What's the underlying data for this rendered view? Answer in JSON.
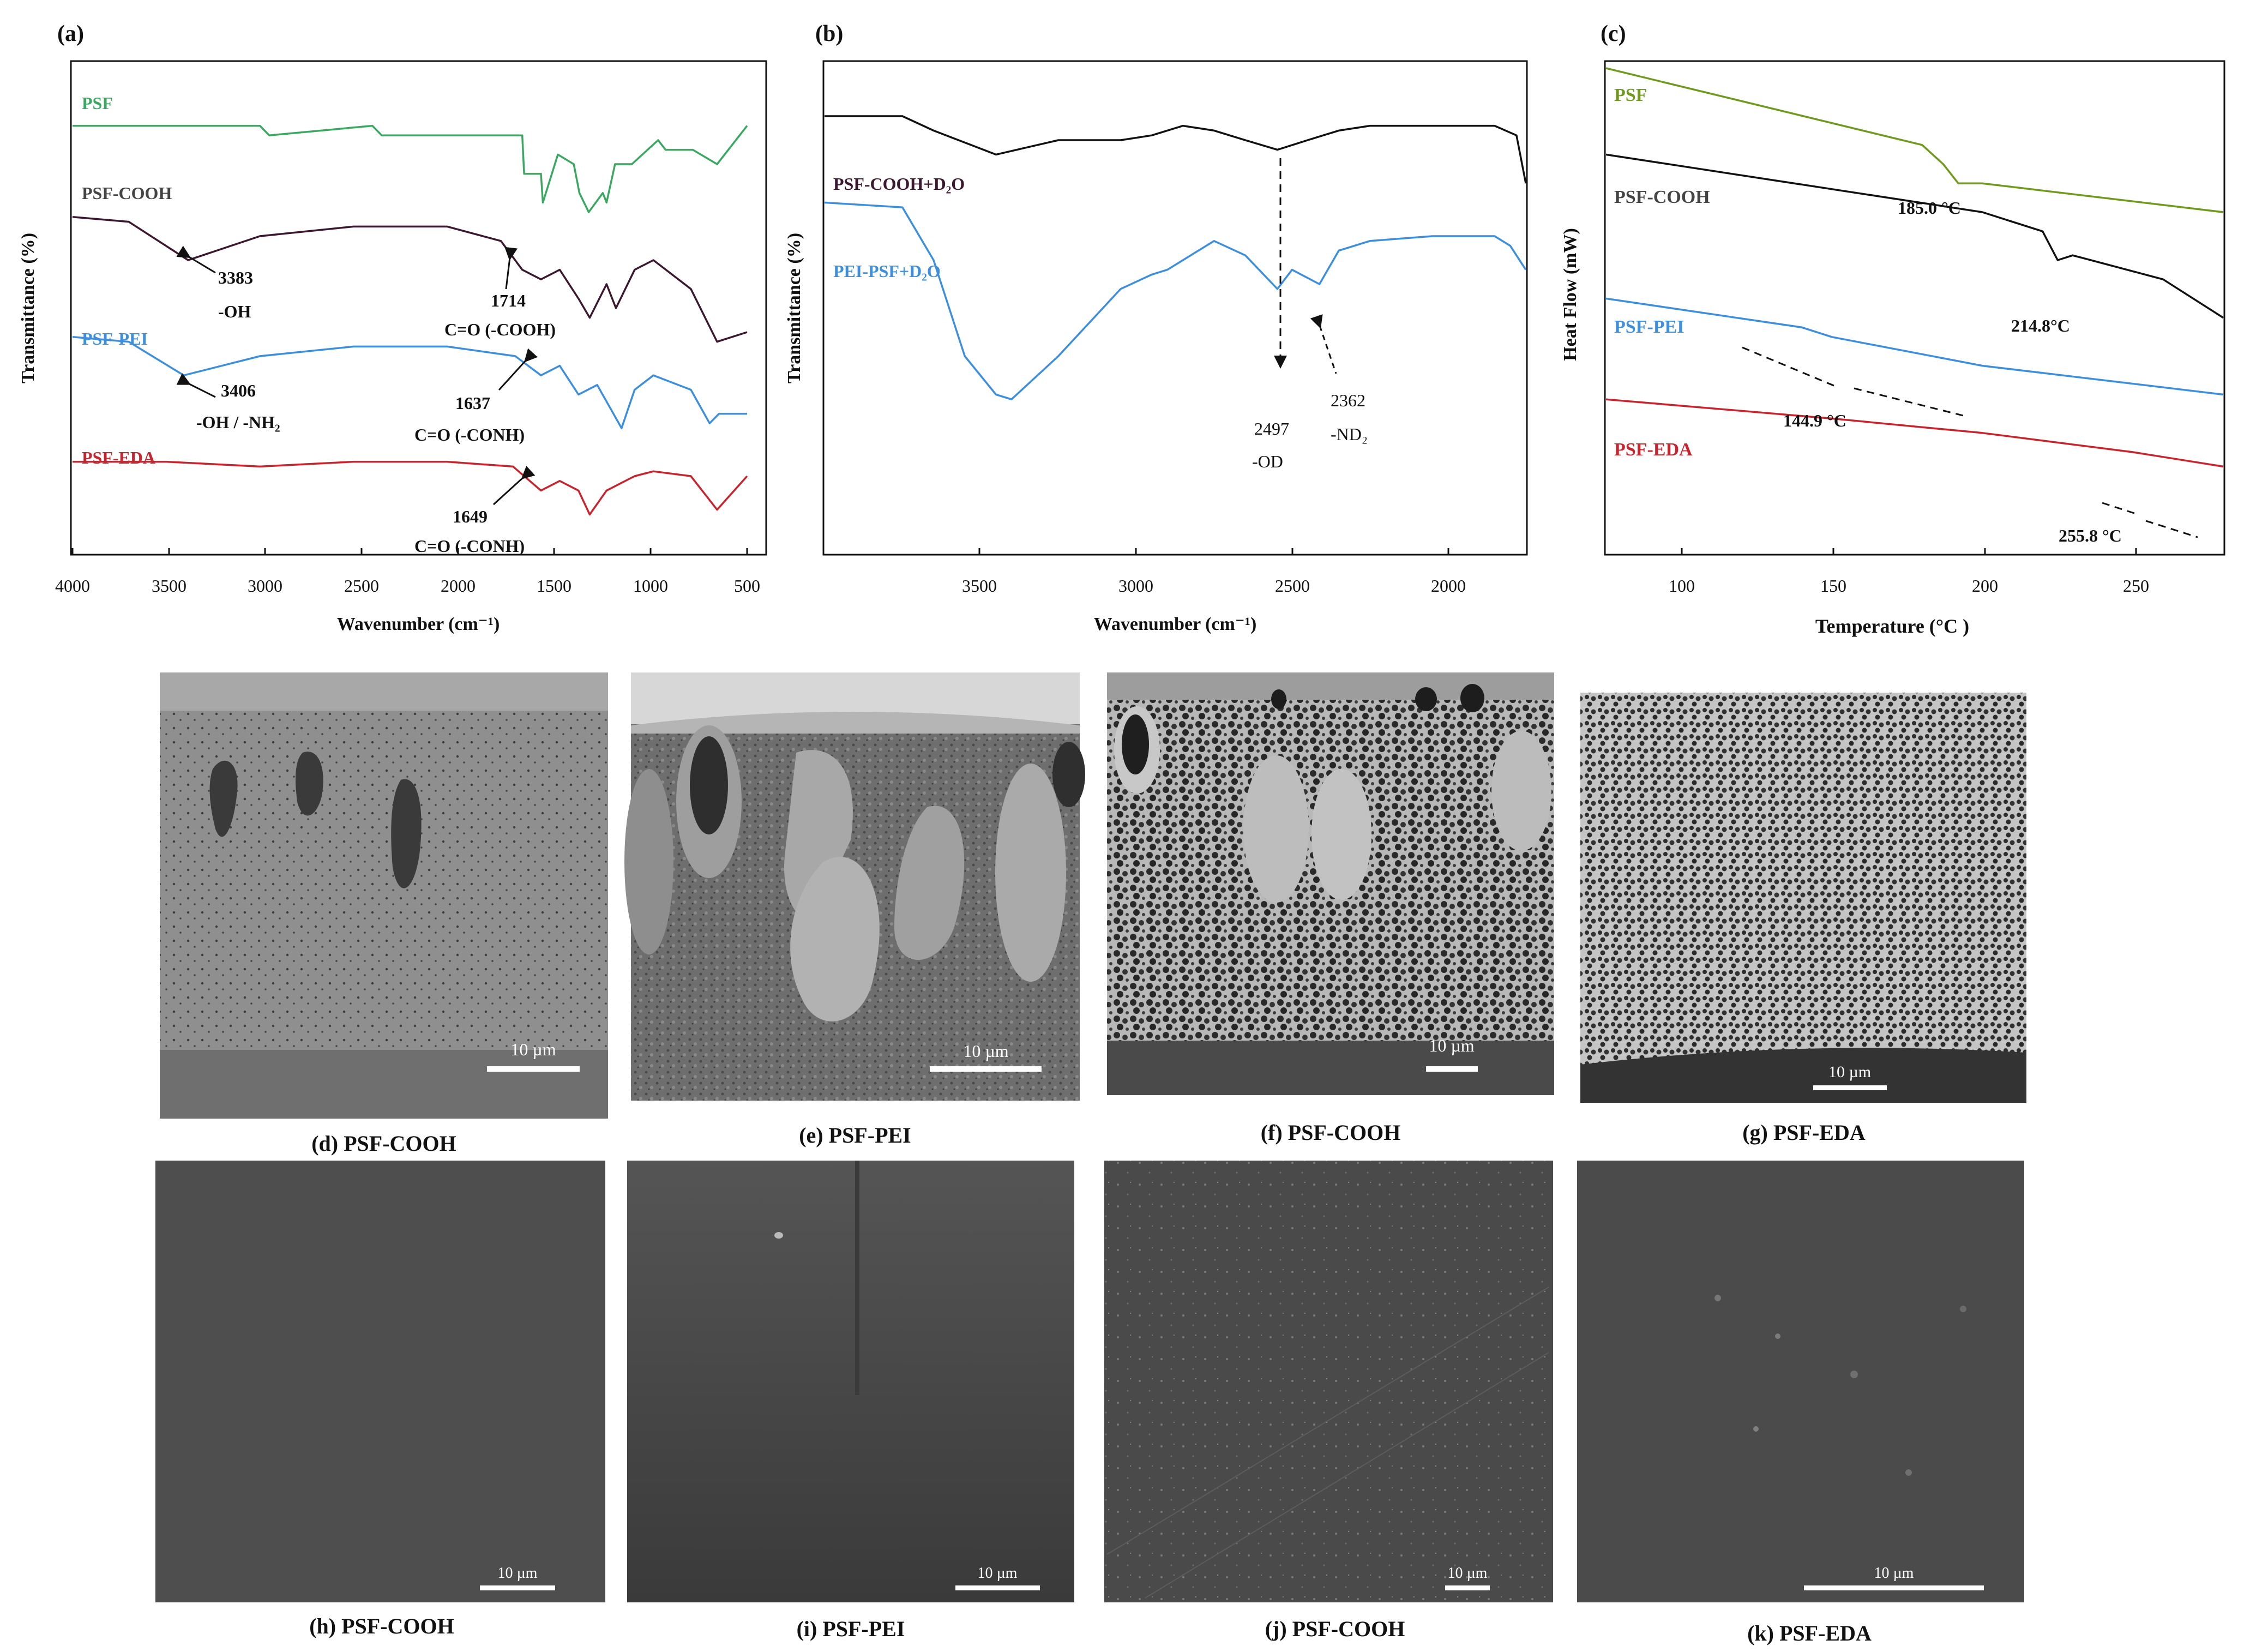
{
  "colors": {
    "green": "#3aa860",
    "purple": "#3c1730",
    "blue": "#3d8fdd",
    "red": "#c8242d",
    "black": "#111111",
    "dsc_green": "#6f9a1e"
  },
  "panels": {
    "a": {
      "label": "(a)",
      "xlabel": "Wavenumber (cm⁻¹)",
      "ylabel": "Transmittance (%)",
      "ticks": [
        "4000",
        "3500",
        "3000",
        "2500",
        "2000",
        "1500",
        "1000",
        "500"
      ],
      "series_labels": [
        "PSF",
        "PSF-COOH",
        "PSF-PEI",
        "PSF-EDA"
      ],
      "annotations": [
        {
          "num": "3383",
          "sub": "-OH"
        },
        {
          "num": "1714",
          "sub": "C=O (-COOH)"
        },
        {
          "num": "3406",
          "sub": "-OH / -NH₂"
        },
        {
          "num": "1637",
          "sub": "C=O (-CONH)"
        },
        {
          "num": "1649",
          "sub": "C=O (-CONH)"
        }
      ]
    },
    "b": {
      "label": "(b)",
      "xlabel": "Wavenumber (cm⁻¹)",
      "ylabel": "Transmittance (%)",
      "ticks": [
        "3500",
        "3000",
        "2500",
        "2000"
      ],
      "series_labels": [
        "PSF-COOH+D₂O",
        "PEI-PSF+D₂O"
      ],
      "annotations": [
        {
          "num": "2497",
          "sub": "-OD"
        },
        {
          "num": "2362",
          "sub": "-ND₂"
        }
      ]
    },
    "c": {
      "label": "(c)",
      "xlabel": "Temperature (°C )",
      "ylabel": "Heat Flow (mW)",
      "ticks": [
        "100",
        "150",
        "200",
        "250"
      ],
      "series_labels": [
        "PSF",
        "PSF-COOH",
        "PSF-PEI",
        "PSF-EDA"
      ],
      "annotations": [
        "185.0 °C",
        "214.8°C",
        "144.9 °C",
        "255.8 °C"
      ]
    }
  },
  "sem": {
    "row1": [
      {
        "caption": "(d) PSF-COOH",
        "scale": "10 µm"
      },
      {
        "caption": "(e) PSF-PEI",
        "scale": "10 µm"
      },
      {
        "caption": "(f) PSF-COOH",
        "scale": "10 µm"
      },
      {
        "caption": "(g) PSF-EDA",
        "scale": "10 µm"
      }
    ],
    "row2": [
      {
        "caption": "(h) PSF-COOH",
        "scale": "10 µm"
      },
      {
        "caption": "(i) PSF-PEI",
        "scale": "10 µm"
      },
      {
        "caption": "(j) PSF-COOH",
        "scale": "10 µm"
      },
      {
        "caption": "(k) PSF-EDA",
        "scale": "10 µm"
      }
    ]
  },
  "chart_data": [
    {
      "type": "line",
      "panel": "a",
      "xlabel": "Wavenumber (cm⁻¹)",
      "ylabel": "Transmittance (%)",
      "xlim": [
        4000,
        400
      ],
      "series": [
        {
          "name": "PSF",
          "x": [
            4000,
            3000,
            2950,
            2400,
            2350,
            1600,
            1590,
            1500,
            1490,
            1410,
            1325,
            1295,
            1245,
            1170,
            1150,
            1105,
            1015,
            875,
            835,
            690,
            560,
            400
          ],
          "y": [
            88,
            88,
            86,
            88,
            86,
            86,
            78,
            78,
            72,
            82,
            80,
            74,
            70,
            74,
            72,
            80,
            80,
            85,
            83,
            83,
            80,
            88
          ]
        },
        {
          "name": "PSF-COOH",
          "x": [
            4000,
            3700,
            3383,
            3000,
            2500,
            2000,
            1714,
            1600,
            1500,
            1400,
            1300,
            1240,
            1150,
            1100,
            1000,
            900,
            700,
            560,
            400
          ],
          "y": [
            69,
            68,
            60,
            65,
            67,
            67,
            64,
            58,
            56,
            58,
            52,
            48,
            55,
            50,
            58,
            60,
            54,
            43,
            45
          ]
        },
        {
          "name": "PSF-PEI",
          "x": [
            4000,
            3700,
            3406,
            3000,
            2500,
            2000,
            1637,
            1500,
            1400,
            1300,
            1200,
            1070,
            1000,
            900,
            700,
            600,
            550,
            400
          ],
          "y": [
            44,
            43,
            36,
            40,
            42,
            42,
            40,
            36,
            38,
            32,
            34,
            25,
            33,
            36,
            33,
            26,
            28,
            28
          ]
        },
        {
          "name": "PSF-EDA",
          "x": [
            4000,
            3500,
            3000,
            2500,
            2000,
            1649,
            1500,
            1400,
            1300,
            1240,
            1150,
            1000,
            900,
            700,
            560,
            400
          ],
          "y": [
            18,
            18,
            17,
            18,
            18,
            17,
            12,
            14,
            12,
            7,
            12,
            15,
            16,
            15,
            8,
            15
          ]
        }
      ]
    },
    {
      "type": "line",
      "panel": "b",
      "xlabel": "Wavenumber (cm⁻¹)",
      "ylabel": "Transmittance (%)",
      "xlim": [
        3950,
        1700
      ],
      "series": [
        {
          "name": "PSF-COOH+D₂O",
          "x": [
            3950,
            3700,
            3600,
            3400,
            3200,
            3000,
            2900,
            2800,
            2700,
            2600,
            2497,
            2400,
            2300,
            2200,
            2000,
            1800,
            1730,
            1700
          ],
          "y": [
            90,
            90,
            87,
            82,
            85,
            85,
            86,
            88,
            87,
            85,
            83,
            85,
            87,
            88,
            88,
            88,
            86,
            76
          ]
        },
        {
          "name": "PEI-PSF+D₂O",
          "x": [
            3950,
            3700,
            3600,
            3500,
            3400,
            3350,
            3200,
            3000,
            2900,
            2850,
            2700,
            2600,
            2497,
            2450,
            2362,
            2300,
            2200,
            2000,
            1800,
            1750,
            1700
          ],
          "y": [
            72,
            71,
            60,
            40,
            32,
            31,
            40,
            54,
            57,
            58,
            64,
            61,
            54,
            58,
            55,
            62,
            64,
            65,
            65,
            63,
            58
          ]
        }
      ]
    },
    {
      "type": "line",
      "panel": "c",
      "xlabel": "Temperature (°C )",
      "ylabel": "Heat Flow (mW)",
      "xlim": [
        75,
        280
      ],
      "series": [
        {
          "name": "PSF",
          "x": [
            75,
            180,
            187,
            192,
            200,
            280
          ],
          "y": [
            100,
            84,
            80,
            76,
            76,
            70
          ]
        },
        {
          "name": "PSF-COOH",
          "x": [
            75,
            200,
            220,
            225,
            230,
            260,
            280
          ],
          "y": [
            82,
            70,
            66,
            60,
            61,
            56,
            48
          ]
        },
        {
          "name": "PSF-PEI",
          "x": [
            75,
            140,
            150,
            200,
            280
          ],
          "y": [
            52,
            46,
            44,
            38,
            32
          ]
        },
        {
          "name": "PSF-EDA",
          "x": [
            75,
            150,
            200,
            250,
            260,
            280
          ],
          "y": [
            31,
            27,
            24,
            20,
            19,
            17
          ]
        }
      ]
    }
  ]
}
